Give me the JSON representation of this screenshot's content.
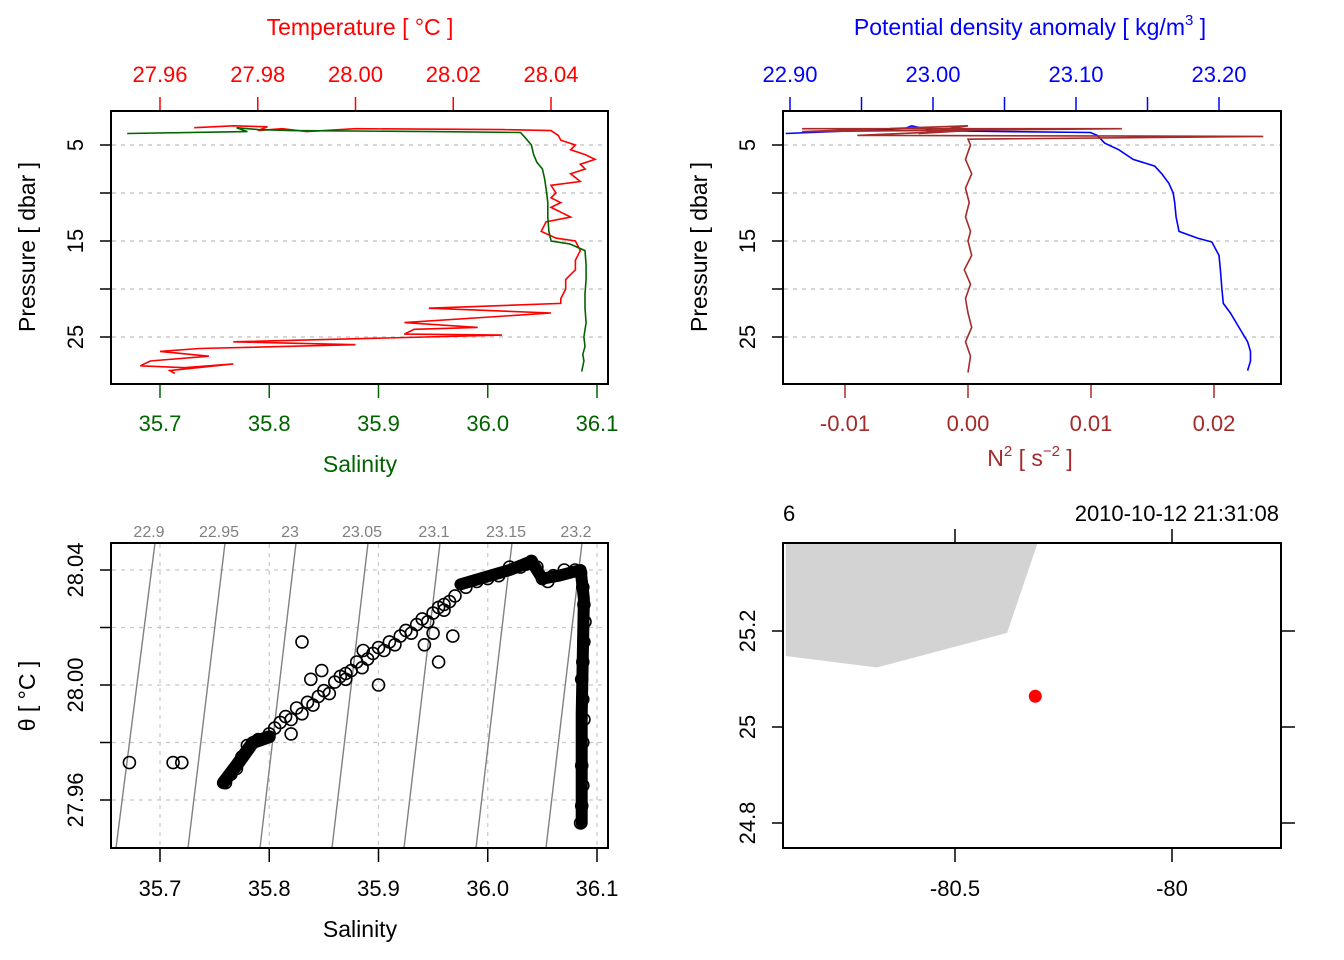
{
  "chart_data": [
    {
      "id": "profile-ts",
      "type": "line",
      "title": "",
      "top_axis": {
        "label": "Temperature [ °C ]",
        "color": "#ff0000",
        "ticks": [
          27.96,
          27.98,
          28.0,
          28.02,
          28.04
        ],
        "tick_labels": [
          "27.96",
          "27.98",
          "28.00",
          "28.02",
          "28.04"
        ]
      },
      "bottom_axis": {
        "label": "Salinity",
        "color": "#006400",
        "ticks": [
          35.7,
          35.8,
          35.9,
          36.0,
          36.1
        ],
        "tick_labels": [
          "35.7",
          "35.8",
          "35.9",
          "36.0",
          "36.1"
        ]
      },
      "ylabel": "Pressure [ dbar ]",
      "y_ticks": [
        5,
        10,
        15,
        20,
        25
      ],
      "y_tick_labels": [
        "5",
        "",
        "15",
        "",
        "25"
      ],
      "ylim": [
        29.5,
        1.5
      ],
      "grid": "horizontal-dashed",
      "series": [
        {
          "name": "Temperature",
          "color": "#ff0000",
          "x": [
            27.967,
            27.975,
            27.982,
            27.98,
            27.985,
            27.99,
            28.0,
            28.03,
            28.04,
            28.0415,
            28.042,
            28.045,
            28.044,
            28.047,
            28.049,
            28.046,
            28.047,
            28.044,
            28.046,
            28.04,
            28.041,
            28.04,
            28.042,
            28.04,
            28.044,
            28.039,
            28.038,
            28.041,
            28.045,
            28.046,
            28.045,
            28.045,
            28.043,
            28.043,
            28.042,
            28.042,
            28.015,
            28.04,
            28.01,
            28.025,
            28.012,
            28.01,
            28.03,
            27.975,
            28.0,
            27.968,
            27.96,
            27.97,
            27.958,
            27.956,
            27.965,
            27.975,
            27.962,
            27.963
          ],
          "y": [
            3.2,
            3.0,
            3.1,
            3.5,
            3.3,
            3.6,
            3.3,
            3.4,
            3.5,
            4.0,
            4.5,
            5.0,
            5.5,
            6.0,
            6.5,
            7.0,
            7.5,
            8.0,
            8.8,
            9.2,
            10.0,
            10.5,
            11.0,
            11.5,
            12.5,
            13.0,
            14.0,
            14.7,
            15.0,
            16.0,
            17.0,
            18.0,
            19.0,
            20.0,
            21.0,
            21.5,
            22.0,
            22.5,
            23.5,
            24.0,
            24.2,
            24.7,
            24.8,
            25.5,
            25.8,
            26.2,
            26.5,
            27.0,
            27.5,
            28.0,
            28.2,
            27.8,
            28.5,
            28.8
          ]
        },
        {
          "name": "Salinity",
          "color": "#006400",
          "x": [
            35.67,
            35.78,
            35.77,
            35.79,
            35.82,
            35.95,
            36.03,
            36.034,
            36.04,
            36.042,
            36.045,
            36.05,
            36.052,
            36.054,
            36.055,
            36.055,
            36.056,
            36.058,
            36.075,
            36.089,
            36.09,
            36.09,
            36.089,
            36.089,
            36.09,
            36.088,
            36.089,
            36.087,
            36.088,
            36.086
          ],
          "y": [
            3.8,
            3.6,
            3.2,
            3.4,
            3.5,
            3.6,
            3.7,
            4.2,
            5.0,
            6.0,
            6.8,
            7.5,
            8.5,
            10.0,
            11.0,
            12.5,
            14.0,
            15.0,
            15.3,
            16.0,
            17.5,
            19.0,
            20.5,
            22.0,
            23.5,
            25.0,
            26.0,
            26.8,
            27.5,
            28.6
          ]
        }
      ]
    },
    {
      "id": "profile-density-n2",
      "type": "line",
      "title": "",
      "top_axis": {
        "label": "Potential density anomaly [ kg/m³ ]",
        "label_main": "Potential density anomaly [ kg/m",
        "label_sup": "3",
        "label_end": " ]",
        "color": "#0000ff",
        "ticks": [
          22.9,
          22.95,
          23.0,
          23.05,
          23.1,
          23.15,
          23.2
        ],
        "tick_labels": [
          "22.90",
          "",
          "23.00",
          "",
          "23.10",
          "",
          "23.20"
        ]
      },
      "bottom_axis": {
        "label": "N² [ s⁻² ]",
        "label_main": "N",
        "label_sup": "2",
        "label_mid": " [ s",
        "label_sup2": "−2",
        "label_end": " ]",
        "color": "#a52a2a",
        "ticks": [
          -0.01,
          0.0,
          0.01,
          0.02
        ],
        "tick_labels": [
          "-0.01",
          "0.00",
          "0.01",
          "0.02"
        ]
      },
      "ylabel": "Pressure [ dbar ]",
      "y_ticks": [
        5,
        10,
        15,
        20,
        25
      ],
      "y_tick_labels": [
        "5",
        "",
        "15",
        "",
        "25"
      ],
      "ylim": [
        29.5,
        1.5
      ],
      "grid": "horizontal-dashed",
      "series": [
        {
          "name": "Potential density anomaly",
          "color": "#0000ff",
          "x": [
            22.897,
            22.98,
            22.985,
            23.0,
            23.05,
            23.11,
            23.115,
            23.12,
            23.13,
            23.14,
            23.155,
            23.16,
            23.165,
            23.168,
            23.169,
            23.17,
            23.172,
            23.185,
            23.195,
            23.2,
            23.201,
            23.202,
            23.203,
            23.208,
            23.214,
            23.22,
            23.222,
            23.222,
            23.22
          ],
          "y": [
            3.8,
            3.3,
            3.0,
            3.5,
            3.6,
            3.7,
            4.0,
            4.8,
            5.5,
            6.5,
            7.2,
            8.0,
            9.0,
            10.0,
            11.0,
            12.5,
            14.0,
            14.7,
            15.1,
            16.5,
            18.0,
            20.0,
            21.5,
            22.5,
            24.0,
            25.5,
            26.5,
            27.5,
            28.5
          ]
        },
        {
          "name": "N2",
          "color": "#a52a2a",
          "x": [
            -0.0135,
            0.0125,
            -0.0135,
            0.0,
            -0.004,
            0.0,
            -0.009,
            0.024,
            0.0,
            0.0002,
            -0.0002,
            0.0003,
            -0.0002,
            0.0001,
            -0.0002,
            0.0002,
            0.0,
            0.0003,
            -0.0003,
            0.0002,
            -0.0002,
            0.0,
            0.0003,
            -0.0002,
            0.0002,
            0.0
          ],
          "y": [
            3.3,
            3.3,
            3.6,
            3.0,
            3.8,
            3.5,
            4.0,
            4.1,
            4.4,
            5.0,
            6.5,
            8.0,
            9.5,
            11.0,
            12.5,
            14.0,
            15.0,
            16.5,
            18.0,
            19.5,
            21.0,
            22.5,
            24.0,
            25.5,
            27.0,
            28.7
          ]
        }
      ]
    },
    {
      "id": "ts-diagram",
      "type": "scatter",
      "title": "",
      "xlabel": "Salinity",
      "ylabel": "θ [ °C ]",
      "x_ticks": [
        35.7,
        35.8,
        35.9,
        36.0,
        36.1
      ],
      "x_tick_labels": [
        "35.7",
        "35.8",
        "35.9",
        "36.0",
        "36.1"
      ],
      "y_ticks": [
        27.96,
        27.98,
        28.0,
        28.02,
        28.04
      ],
      "y_tick_labels": [
        "27.96",
        "",
        "28.00",
        "",
        "28.04"
      ],
      "xlim": [
        35.655,
        36.11
      ],
      "ylim": [
        27.945,
        28.049
      ],
      "grid": "dashed",
      "isopycnals": {
        "color": "#808080",
        "levels": [
          22.9,
          22.95,
          23.0,
          23.05,
          23.1,
          23.15,
          23.2
        ],
        "labels": [
          "22.9",
          "22.95",
          "23",
          "23.05",
          "23.1",
          "23.15",
          "23.2"
        ]
      },
      "points": {
        "x": [
          35.672,
          35.712,
          35.72,
          35.76,
          35.765,
          35.77,
          35.775,
          35.78,
          35.79,
          35.8,
          35.805,
          35.81,
          35.815,
          35.82,
          35.825,
          35.83,
          35.835,
          35.84,
          35.845,
          35.85,
          35.855,
          35.86,
          35.865,
          35.87,
          35.875,
          35.88,
          35.885,
          35.89,
          35.895,
          35.9,
          35.905,
          35.91,
          35.915,
          35.92,
          35.925,
          35.93,
          35.935,
          35.94,
          35.945,
          35.95,
          35.955,
          35.96,
          35.965,
          35.97,
          35.98,
          35.99,
          36.0,
          36.01,
          36.02,
          36.03,
          36.035,
          36.04,
          36.045,
          36.05,
          36.055,
          36.06,
          36.07,
          36.08,
          36.085,
          36.087,
          36.088,
          36.089,
          36.088,
          36.087,
          36.086,
          36.087,
          36.088,
          36.087,
          36.086,
          36.087,
          36.086,
          36.085,
          35.848,
          35.87,
          35.955,
          35.96,
          35.9,
          35.942,
          35.968,
          35.95,
          35.82,
          35.838,
          35.886,
          35.83
        ],
        "y": [
          27.973,
          27.973,
          27.973,
          27.966,
          27.969,
          27.971,
          27.975,
          27.979,
          27.981,
          27.983,
          27.985,
          27.987,
          27.989,
          27.988,
          27.992,
          27.99,
          27.994,
          27.993,
          27.996,
          27.998,
          27.997,
          28.001,
          28.003,
          28.002,
          28.005,
          28.008,
          28.006,
          28.009,
          28.011,
          28.013,
          28.012,
          28.015,
          28.014,
          28.017,
          28.019,
          28.018,
          28.021,
          28.023,
          28.022,
          28.025,
          28.027,
          28.026,
          28.029,
          28.031,
          28.034,
          28.036,
          28.037,
          28.038,
          28.041,
          28.041,
          28.042,
          28.043,
          28.041,
          28.037,
          28.036,
          28.038,
          28.04,
          28.04,
          28.039,
          28.034,
          28.028,
          28.022,
          28.015,
          28.008,
          28.002,
          27.995,
          27.988,
          27.98,
          27.972,
          27.965,
          27.958,
          27.952,
          28.005,
          28.004,
          28.008,
          28.028,
          28.0,
          28.014,
          28.017,
          28.018,
          27.983,
          28.002,
          28.012,
          28.015
        ]
      }
    },
    {
      "id": "station-map",
      "type": "scatter",
      "title": "",
      "top_left_label": "6",
      "top_right_label": "2010-10-12 21:31:08",
      "x_ticks": [
        -80.5,
        -80.0
      ],
      "x_tick_labels": [
        "-80.5",
        "-80"
      ],
      "y_ticks": [
        24.8,
        25.0,
        25.2
      ],
      "y_tick_labels": [
        "24.8",
        "25",
        "25.2"
      ],
      "xlim": [
        -80.89,
        -79.74
      ],
      "ylim": [
        24.745,
        25.383
      ],
      "land": {
        "color": "#d3d3d3",
        "lon": [
          -80.89,
          -80.31,
          -80.38,
          -80.68,
          -80.89
        ],
        "lat": [
          25.383,
          25.383,
          25.196,
          25.124,
          25.148
        ]
      },
      "station": {
        "lon": -80.315,
        "lat": 25.064,
        "color": "#ff0000"
      }
    }
  ]
}
